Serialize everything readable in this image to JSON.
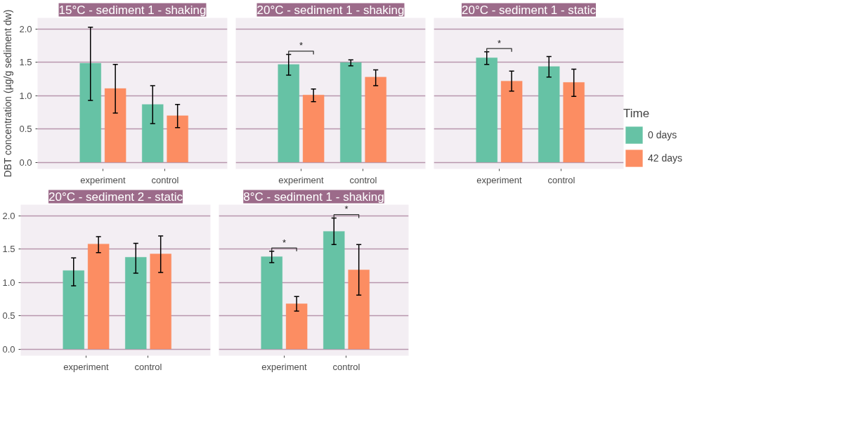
{
  "chart_data": [
    {
      "type": "bar",
      "title": "15°C - sediment 1 - shaking",
      "ylabel": "DBT concentration (µg/g sediment dw)",
      "categories": [
        "experiment",
        "control"
      ],
      "ylim": [
        -0.1,
        2.17
      ],
      "yticks": [
        {
          "value": 0,
          "label": "0.0"
        },
        {
          "value": 0.5,
          "label": "0.5"
        },
        {
          "value": 1,
          "label": "1.0"
        },
        {
          "value": 1.5,
          "label": "1.5"
        },
        {
          "value": 2,
          "label": "2.0"
        }
      ],
      "grid": "y",
      "series": [
        {
          "color": "#66c2a5",
          "values": [
            1.49,
            0.87
          ],
          "errors": [
            [
              0.93,
              2.03
            ],
            [
              0.58,
              1.15
            ]
          ]
        },
        {
          "color": "#fc8d62",
          "values": [
            1.11,
            0.7
          ],
          "errors": [
            [
              0.74,
              1.47
            ],
            [
              0.52,
              0.87
            ]
          ]
        }
      ]
    },
    {
      "type": "bar",
      "title": "20°C - sediment 1 - shaking",
      "categories": [
        "experiment",
        "control"
      ],
      "ylim": [
        -0.1,
        2.17
      ],
      "yticks": [
        {
          "value": 0,
          "label": null
        },
        {
          "value": 0.5,
          "label": null
        },
        {
          "value": 1,
          "label": null
        },
        {
          "value": 1.5,
          "label": null
        },
        {
          "value": 2,
          "label": null
        }
      ],
      "grid": "y",
      "tick_labels": "x",
      "annotations": [
        "*"
      ],
      "series": [
        {
          "color": "#66c2a5",
          "values": [
            1.47,
            1.5
          ],
          "errors": [
            [
              1.31,
              1.62
            ],
            [
              1.45,
              1.54
            ]
          ]
        },
        {
          "color": "#fc8d62",
          "values": [
            1.01,
            1.28
          ],
          "errors": [
            [
              0.91,
              1.1
            ],
            [
              1.15,
              1.39
            ]
          ]
        }
      ]
    },
    {
      "type": "bar",
      "title": "20°C - sediment 1 - static",
      "categories": [
        "experiment",
        "control"
      ],
      "ylim": [
        -0.1,
        2.17
      ],
      "yticks": [
        {
          "value": 0,
          "label": null
        },
        {
          "value": 0.5,
          "label": null
        },
        {
          "value": 1,
          "label": null
        },
        {
          "value": 1.5,
          "label": null
        },
        {
          "value": 2,
          "label": null
        }
      ],
      "grid": "y",
      "legend": "right",
      "legend_title": "Time",
      "tick_labels": "x",
      "annotations": [
        "*"
      ],
      "series": [
        {
          "name": "0 days",
          "color": "#66c2a5",
          "values": [
            1.57,
            1.44
          ],
          "errors": [
            [
              1.47,
              1.66
            ],
            [
              1.28,
              1.59
            ]
          ]
        },
        {
          "name": "42 days",
          "color": "#fc8d62",
          "values": [
            1.22,
            1.2
          ],
          "errors": [
            [
              1.07,
              1.37
            ],
            [
              0.99,
              1.4
            ]
          ]
        }
      ]
    },
    {
      "type": "bar",
      "title": "20°C - sediment 2 - static",
      "categories": [
        "experiment",
        "control"
      ],
      "ylim": [
        -0.1,
        2.17
      ],
      "yticks": [
        {
          "value": 0,
          "label": "0.0"
        },
        {
          "value": 0.5,
          "label": "0.5"
        },
        {
          "value": 1,
          "label": "1.0"
        },
        {
          "value": 1.5,
          "label": "1.5"
        },
        {
          "value": 2,
          "label": "2.0"
        }
      ],
      "grid": "y",
      "series": [
        {
          "color": "#66c2a5",
          "values": [
            1.18,
            1.38
          ],
          "errors": [
            [
              0.95,
              1.37
            ],
            [
              1.14,
              1.59
            ]
          ]
        },
        {
          "color": "#fc8d62",
          "values": [
            1.58,
            1.43
          ],
          "errors": [
            [
              1.45,
              1.69
            ],
            [
              1.15,
              1.7
            ]
          ]
        }
      ]
    },
    {
      "type": "bar",
      "title": "8°C - sediment 1 - shaking",
      "categories": [
        "experiment",
        "control"
      ],
      "ylim": [
        -0.1,
        2.17
      ],
      "yticks": [
        {
          "value": 0,
          "label": null
        },
        {
          "value": 0.5,
          "label": null
        },
        {
          "value": 1,
          "label": null
        },
        {
          "value": 1.5,
          "label": null
        },
        {
          "value": 2,
          "label": null
        }
      ],
      "grid": "y",
      "tick_labels": "x",
      "annotations": [
        "*",
        "*"
      ],
      "series": [
        {
          "color": "#66c2a5",
          "values": [
            1.39,
            1.77
          ],
          "errors": [
            [
              1.3,
              1.47
            ],
            [
              1.57,
              1.97
            ]
          ]
        },
        {
          "color": "#fc8d62",
          "values": [
            0.68,
            1.19
          ],
          "errors": [
            [
              0.57,
              0.79
            ],
            [
              0.81,
              1.57
            ]
          ]
        }
      ]
    }
  ]
}
